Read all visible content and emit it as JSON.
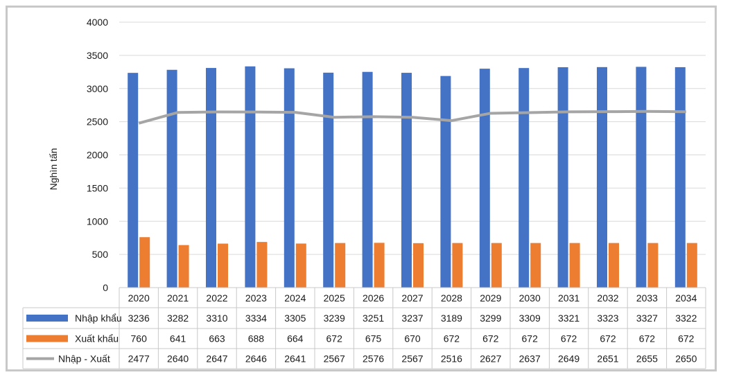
{
  "chart_data": {
    "type": "bar",
    "ylabel": "Nghìn tấn",
    "ylim": [
      0,
      4000
    ],
    "yticks": [
      0,
      500,
      1000,
      1500,
      2000,
      2500,
      3000,
      3500,
      4000
    ],
    "grid": true,
    "legend": "data-table",
    "categories": [
      "2020",
      "2021",
      "2022",
      "2023",
      "2024",
      "2025",
      "2026",
      "2027",
      "2028",
      "2029",
      "2030",
      "2031",
      "2032",
      "2033",
      "2034"
    ],
    "series": [
      {
        "name": "Nhập khẩu",
        "kind": "bar",
        "color": "#4472c4",
        "values": [
          3236,
          3282,
          3310,
          3334,
          3305,
          3239,
          3251,
          3237,
          3189,
          3299,
          3309,
          3321,
          3323,
          3327,
          3322
        ]
      },
      {
        "name": "Xuất khẩu",
        "kind": "bar",
        "color": "#ed7d31",
        "values": [
          760,
          641,
          663,
          688,
          664,
          672,
          675,
          670,
          672,
          672,
          672,
          672,
          672,
          672,
          672
        ]
      },
      {
        "name": "Nhập - Xuất",
        "kind": "line",
        "color": "#a5a5a5",
        "values": [
          2477,
          2640,
          2647,
          2646,
          2641,
          2567,
          2576,
          2567,
          2516,
          2627,
          2637,
          2649,
          2651,
          2655,
          2650
        ]
      }
    ]
  }
}
